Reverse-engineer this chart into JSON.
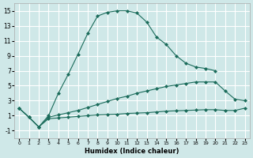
{
  "xlabel": "Humidex (Indice chaleur)",
  "bg_color": "#cfe8e8",
  "grid_color": "#ffffff",
  "line_color": "#1a6b5a",
  "xlim": [
    -0.5,
    23.5
  ],
  "ylim": [
    -2,
    16
  ],
  "xticks": [
    0,
    1,
    2,
    3,
    4,
    5,
    6,
    7,
    8,
    9,
    10,
    11,
    12,
    13,
    14,
    15,
    16,
    17,
    18,
    19,
    20,
    21,
    22,
    23
  ],
  "yticks": [
    -1,
    1,
    3,
    5,
    7,
    9,
    11,
    13,
    15
  ],
  "series1_x": [
    0,
    1,
    2,
    3,
    4,
    5,
    6,
    7,
    8,
    9,
    10,
    11,
    12,
    13,
    14,
    15,
    16,
    17,
    18,
    19,
    20
  ],
  "series1_y": [
    2,
    0.8,
    -0.5,
    1.0,
    4.0,
    6.5,
    9.2,
    12.0,
    14.3,
    14.8,
    15.0,
    15.0,
    14.7,
    13.5,
    11.5,
    10.5,
    9.0,
    8.0,
    7.5,
    7.3,
    7.0
  ],
  "series2_x": [
    0,
    1,
    2,
    3,
    4,
    5,
    6,
    7,
    8,
    9,
    10,
    11,
    12,
    13,
    14,
    15,
    16,
    17,
    18,
    19,
    20,
    21,
    22,
    23
  ],
  "series2_y": [
    2,
    0.8,
    -0.5,
    0.8,
    1.1,
    1.4,
    1.7,
    2.1,
    2.5,
    2.9,
    3.3,
    3.6,
    4.0,
    4.3,
    4.6,
    4.9,
    5.1,
    5.3,
    5.5,
    5.5,
    5.5,
    4.3,
    3.2,
    3.0
  ],
  "series3_x": [
    0,
    1,
    2,
    3,
    4,
    5,
    6,
    7,
    8,
    9,
    10,
    11,
    12,
    13,
    14,
    15,
    16,
    17,
    18,
    19,
    20,
    21,
    22,
    23
  ],
  "series3_y": [
    2,
    0.8,
    -0.5,
    0.6,
    0.7,
    0.8,
    0.9,
    1.0,
    1.1,
    1.15,
    1.2,
    1.3,
    1.35,
    1.4,
    1.5,
    1.6,
    1.65,
    1.7,
    1.75,
    1.8,
    1.8,
    1.7,
    1.7,
    2.0
  ]
}
